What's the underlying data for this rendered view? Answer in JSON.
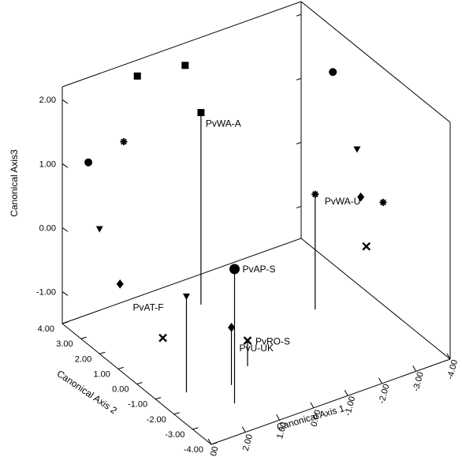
{
  "chart_data": {
    "type": "scatter",
    "projection": "3d",
    "title": "",
    "axes": {
      "x": {
        "label": "Canonical Axis 1",
        "range": [
          -4,
          3
        ],
        "tick_labels": [
          "3.00",
          "2.00",
          "1.00",
          "0.00",
          "-1.00",
          "-2.00",
          "-3.00",
          "-4.00"
        ]
      },
      "y": {
        "label": "Canonical Axis 2",
        "range": [
          -4,
          4
        ],
        "tick_labels": [
          "4.00",
          "3.00",
          "2.00",
          "1.00",
          "0.00",
          "-1.00",
          "-2.00",
          "-3.00",
          "-4.00"
        ]
      },
      "z": {
        "label": "Canonical Axis3",
        "range": [
          -1.5,
          2.2
        ],
        "tick_labels": [
          "2.00",
          "1.00",
          "0.00",
          "-1.00"
        ]
      }
    },
    "backplane_markers": [
      {
        "shape": "square",
        "wall": "back",
        "x": 0.8,
        "y": 4.0,
        "z": 1.95
      },
      {
        "shape": "square",
        "wall": "back",
        "x": -0.6,
        "y": 4.0,
        "z": 1.85
      },
      {
        "shape": "asterisk",
        "wall": "back",
        "x": 1.2,
        "y": 4.0,
        "z": 1.0
      },
      {
        "shape": "circle",
        "wall": "left",
        "x": 3.0,
        "y": 2.6,
        "z": 1.35
      },
      {
        "shape": "triangle",
        "wall": "left",
        "x": 3.0,
        "y": 2.0,
        "z": 0.45
      },
      {
        "shape": "diamond",
        "wall": "left",
        "x": 3.0,
        "y": 0.9,
        "z": -0.15
      },
      {
        "shape": "cross",
        "wall": "left",
        "x": 3.0,
        "y": -1.4,
        "z": -0.45
      },
      {
        "shape": "circle",
        "wall": "right",
        "x": -4.0,
        "y": 2.3,
        "z": 1.5
      },
      {
        "shape": "triangle",
        "wall": "right",
        "x": -4.0,
        "y": 1.0,
        "z": 0.6
      },
      {
        "shape": "asterisk",
        "wall": "right",
        "x": -4.0,
        "y": -0.4,
        "z": 0.1
      },
      {
        "shape": "diamond",
        "wall": "right",
        "x": -4.0,
        "y": 0.8,
        "z": -0.1
      },
      {
        "shape": "cross",
        "wall": "right",
        "x": -4.0,
        "y": 0.5,
        "z": -0.8
      }
    ],
    "points": [
      {
        "label": "PvAT-F",
        "shape": "triangle",
        "x": 2.2,
        "y": -1.2,
        "z": 0.0
      },
      {
        "label": "PvAP-S",
        "shape": "circle",
        "x": 1.5,
        "y": -2.5,
        "z": 0.6
      },
      {
        "label": "PvWA-A",
        "shape": "square",
        "x": -0.3,
        "y": 2.6,
        "z": 1.5
      },
      {
        "label": "PvU-UK",
        "shape": "diamond",
        "x": 1.1,
        "y": -1.6,
        "z": -0.6
      },
      {
        "label": "PvRO-S",
        "shape": "cross",
        "x": 0.3,
        "y": -1.0,
        "z": -1.1
      },
      {
        "label": "PvWA-U",
        "shape": "asterisk",
        "x": -2.5,
        "y": 0.5,
        "z": 0.3
      }
    ]
  }
}
